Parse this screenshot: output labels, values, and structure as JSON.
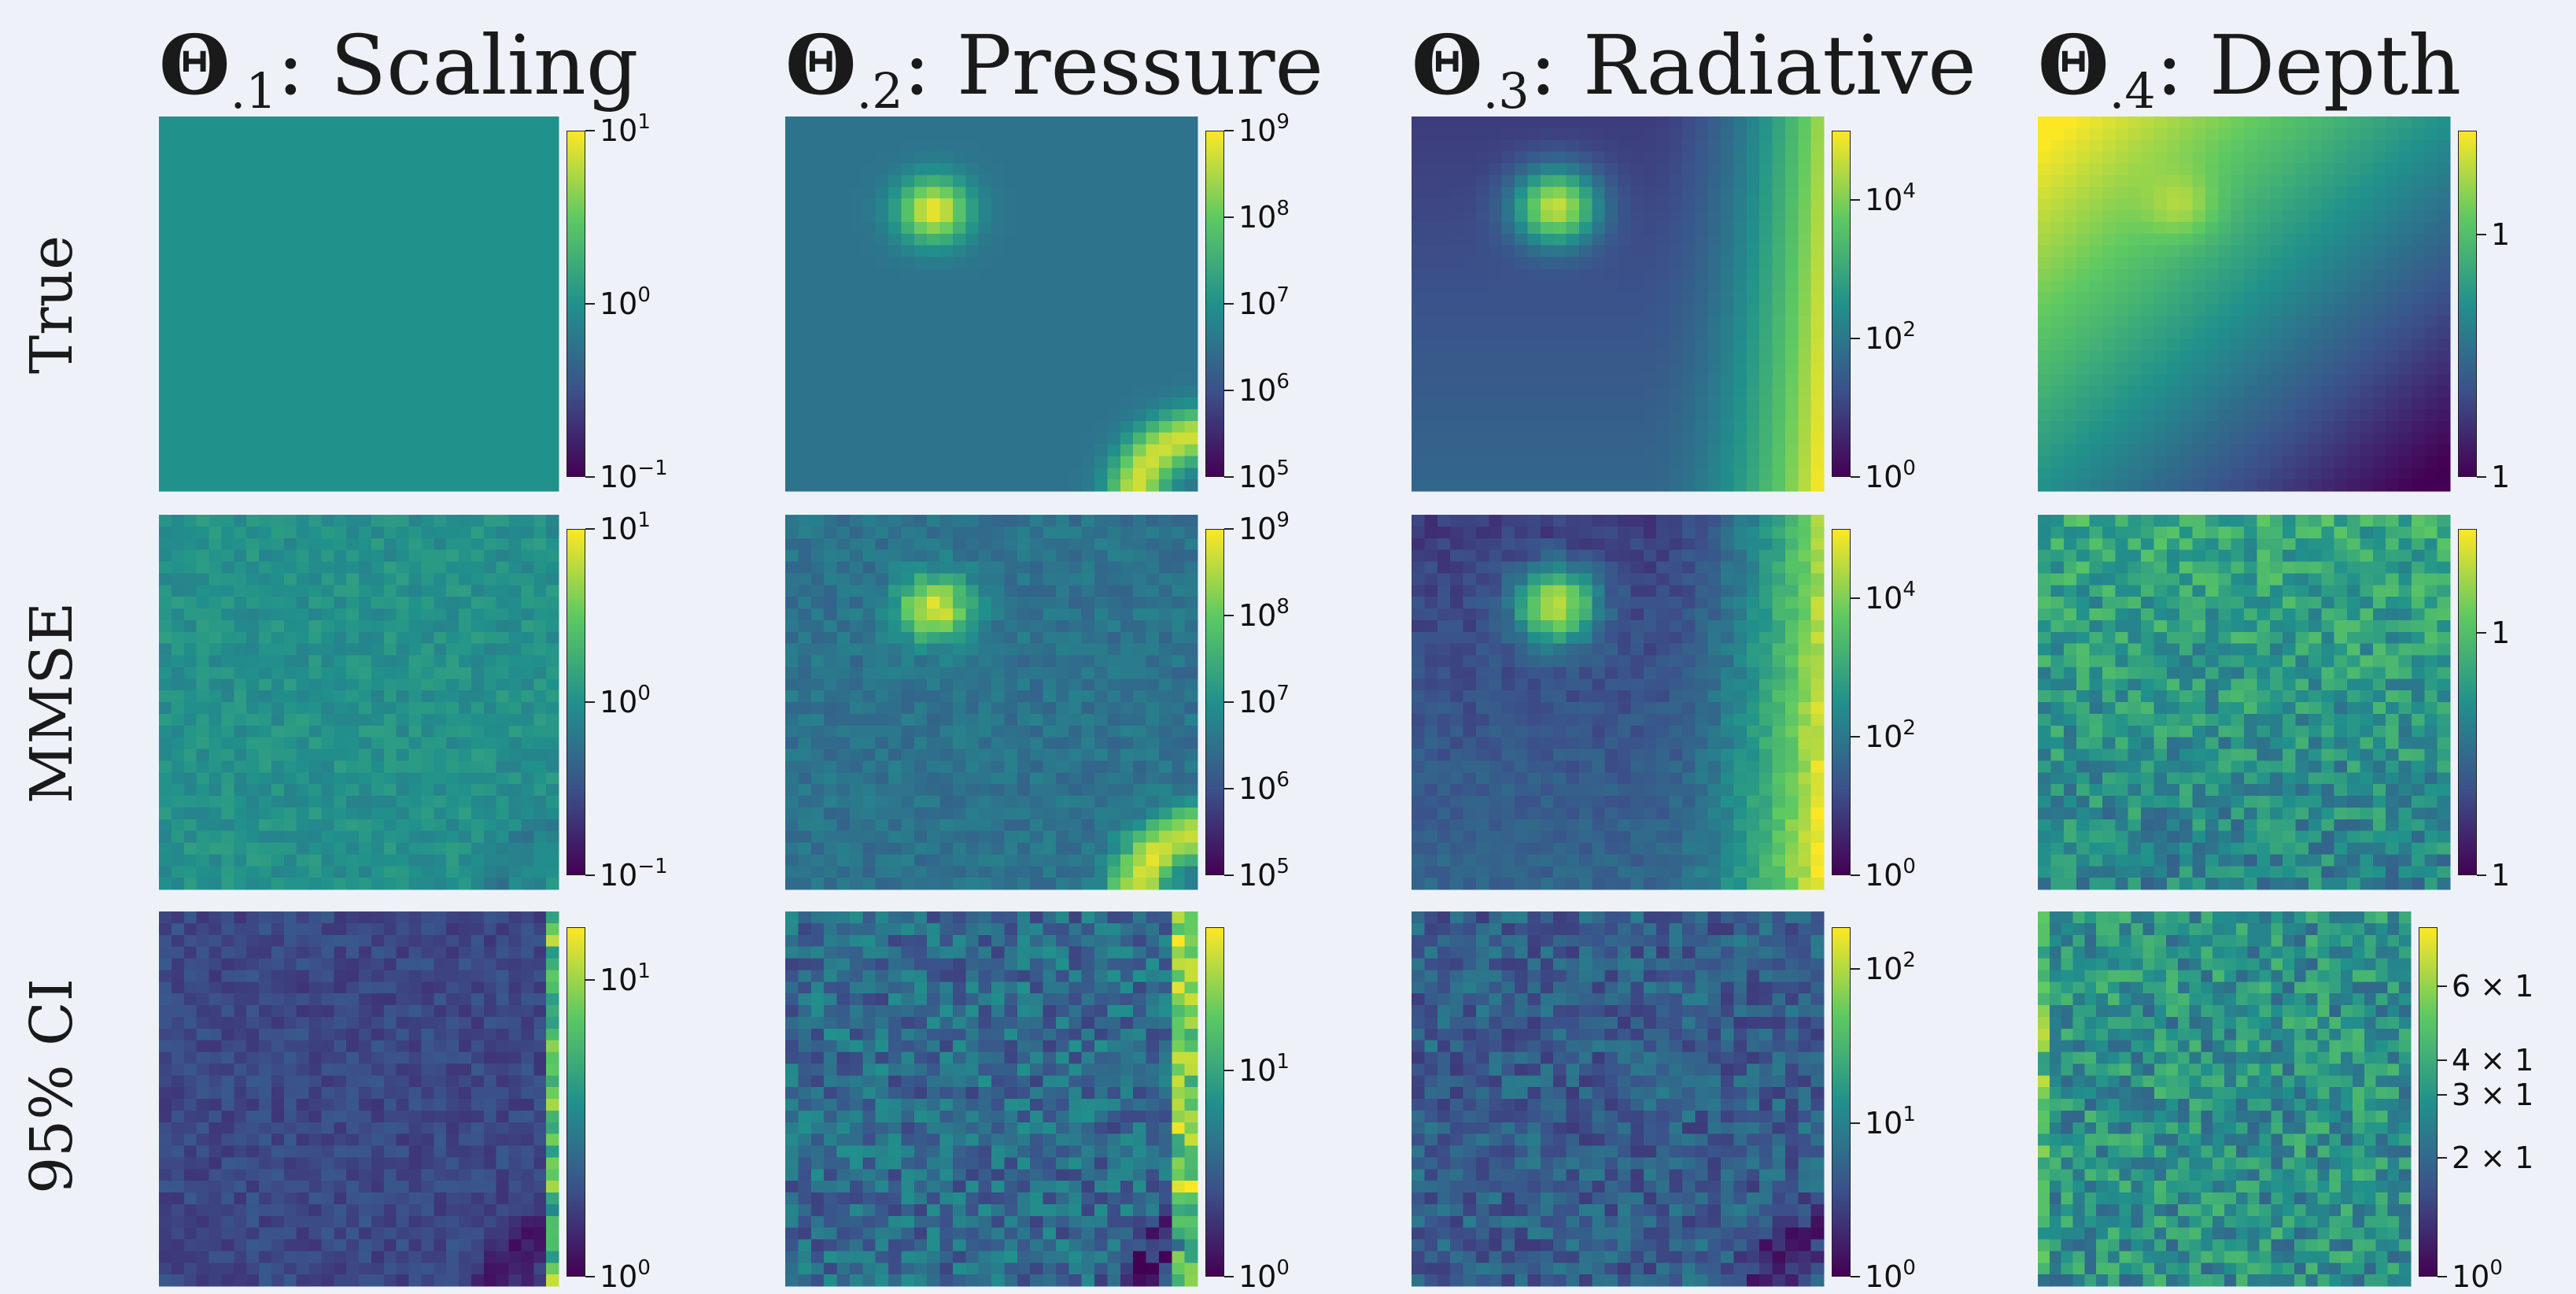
{
  "chart_data": {
    "type": "heatmap",
    "colormap": "viridis",
    "columns": [
      {
        "theta": "Θ",
        "sub": ".1",
        "label": ": Scaling"
      },
      {
        "theta": "Θ",
        "sub": ".2",
        "label": ": Pressure"
      },
      {
        "theta": "Θ",
        "sub": ".3",
        "label": ": Radiative"
      },
      {
        "theta": "Θ",
        "sub": ".4",
        "label": ": Depth"
      }
    ],
    "rows": [
      {
        "label": "True"
      },
      {
        "label": "MMSE"
      },
      {
        "label": "95% CI"
      }
    ],
    "grid_resolution": 32,
    "log_scale": true,
    "panels": [
      {
        "row": 0,
        "col": 0,
        "field": "uniform",
        "ticks": [
          {
            "base": "10",
            "exp": "1",
            "frac": 1.0
          },
          {
            "base": "10",
            "exp": "0",
            "frac": 0.5
          },
          {
            "base": "10",
            "exp": "−1",
            "frac": 0.0
          }
        ]
      },
      {
        "row": 0,
        "col": 1,
        "field": "pressure",
        "ticks": [
          {
            "base": "10",
            "exp": "9",
            "frac": 1.0
          },
          {
            "base": "10",
            "exp": "8",
            "frac": 0.75
          },
          {
            "base": "10",
            "exp": "7",
            "frac": 0.5
          },
          {
            "base": "10",
            "exp": "6",
            "frac": 0.25
          },
          {
            "base": "10",
            "exp": "5",
            "frac": 0.0
          }
        ]
      },
      {
        "row": 0,
        "col": 2,
        "field": "radiative",
        "ticks": [
          {
            "base": "10",
            "exp": "4",
            "frac": 0.8
          },
          {
            "base": "10",
            "exp": "2",
            "frac": 0.4
          },
          {
            "base": "10",
            "exp": "0",
            "frac": 0.0
          }
        ]
      },
      {
        "row": 0,
        "col": 3,
        "field": "depth",
        "ticks": [
          {
            "base": "1",
            "exp": "",
            "frac": 0.7
          },
          {
            "base": "1",
            "exp": "",
            "frac": 0.0
          }
        ]
      },
      {
        "row": 1,
        "col": 0,
        "field": "scaling-mmse",
        "ticks": [
          {
            "base": "10",
            "exp": "1",
            "frac": 1.0
          },
          {
            "base": "10",
            "exp": "0",
            "frac": 0.5
          },
          {
            "base": "10",
            "exp": "−1",
            "frac": 0.0
          }
        ]
      },
      {
        "row": 1,
        "col": 1,
        "field": "pressure-mmse",
        "ticks": [
          {
            "base": "10",
            "exp": "9",
            "frac": 1.0
          },
          {
            "base": "10",
            "exp": "8",
            "frac": 0.75
          },
          {
            "base": "10",
            "exp": "7",
            "frac": 0.5
          },
          {
            "base": "10",
            "exp": "6",
            "frac": 0.25
          },
          {
            "base": "10",
            "exp": "5",
            "frac": 0.0
          }
        ]
      },
      {
        "row": 1,
        "col": 2,
        "field": "radiative-mmse",
        "ticks": [
          {
            "base": "10",
            "exp": "4",
            "frac": 0.8
          },
          {
            "base": "10",
            "exp": "2",
            "frac": 0.4
          },
          {
            "base": "10",
            "exp": "0",
            "frac": 0.0
          }
        ]
      },
      {
        "row": 1,
        "col": 3,
        "field": "depth-mmse",
        "ticks": [
          {
            "base": "1",
            "exp": "",
            "frac": 0.7
          },
          {
            "base": "1",
            "exp": "",
            "frac": 0.0
          }
        ]
      },
      {
        "row": 2,
        "col": 0,
        "field": "scaling-ci",
        "ticks": [
          {
            "base": "10",
            "exp": "1",
            "frac": 0.85
          },
          {
            "base": "10",
            "exp": "0",
            "frac": 0.0
          }
        ]
      },
      {
        "row": 2,
        "col": 1,
        "field": "pressure-ci",
        "ticks": [
          {
            "base": "10",
            "exp": "1",
            "frac": 0.59
          },
          {
            "base": "10",
            "exp": "0",
            "frac": 0.0
          }
        ]
      },
      {
        "row": 2,
        "col": 2,
        "field": "radiative-ci",
        "ticks": [
          {
            "base": "10",
            "exp": "2",
            "frac": 0.88
          },
          {
            "base": "10",
            "exp": "1",
            "frac": 0.44
          },
          {
            "base": "10",
            "exp": "0",
            "frac": 0.0
          }
        ]
      },
      {
        "row": 2,
        "col": 3,
        "field": "depth-ci",
        "ticks": [
          {
            "base": "6 × 1",
            "exp": "",
            "frac": 0.83
          },
          {
            "base": "4 × 1",
            "exp": "",
            "frac": 0.62
          },
          {
            "base": "3 × 1",
            "exp": "",
            "frac": 0.52
          },
          {
            "base": "2 × 1",
            "exp": "",
            "frac": 0.34
          },
          {
            "base": "10",
            "exp": "0",
            "frac": 0.0
          }
        ]
      }
    ]
  }
}
